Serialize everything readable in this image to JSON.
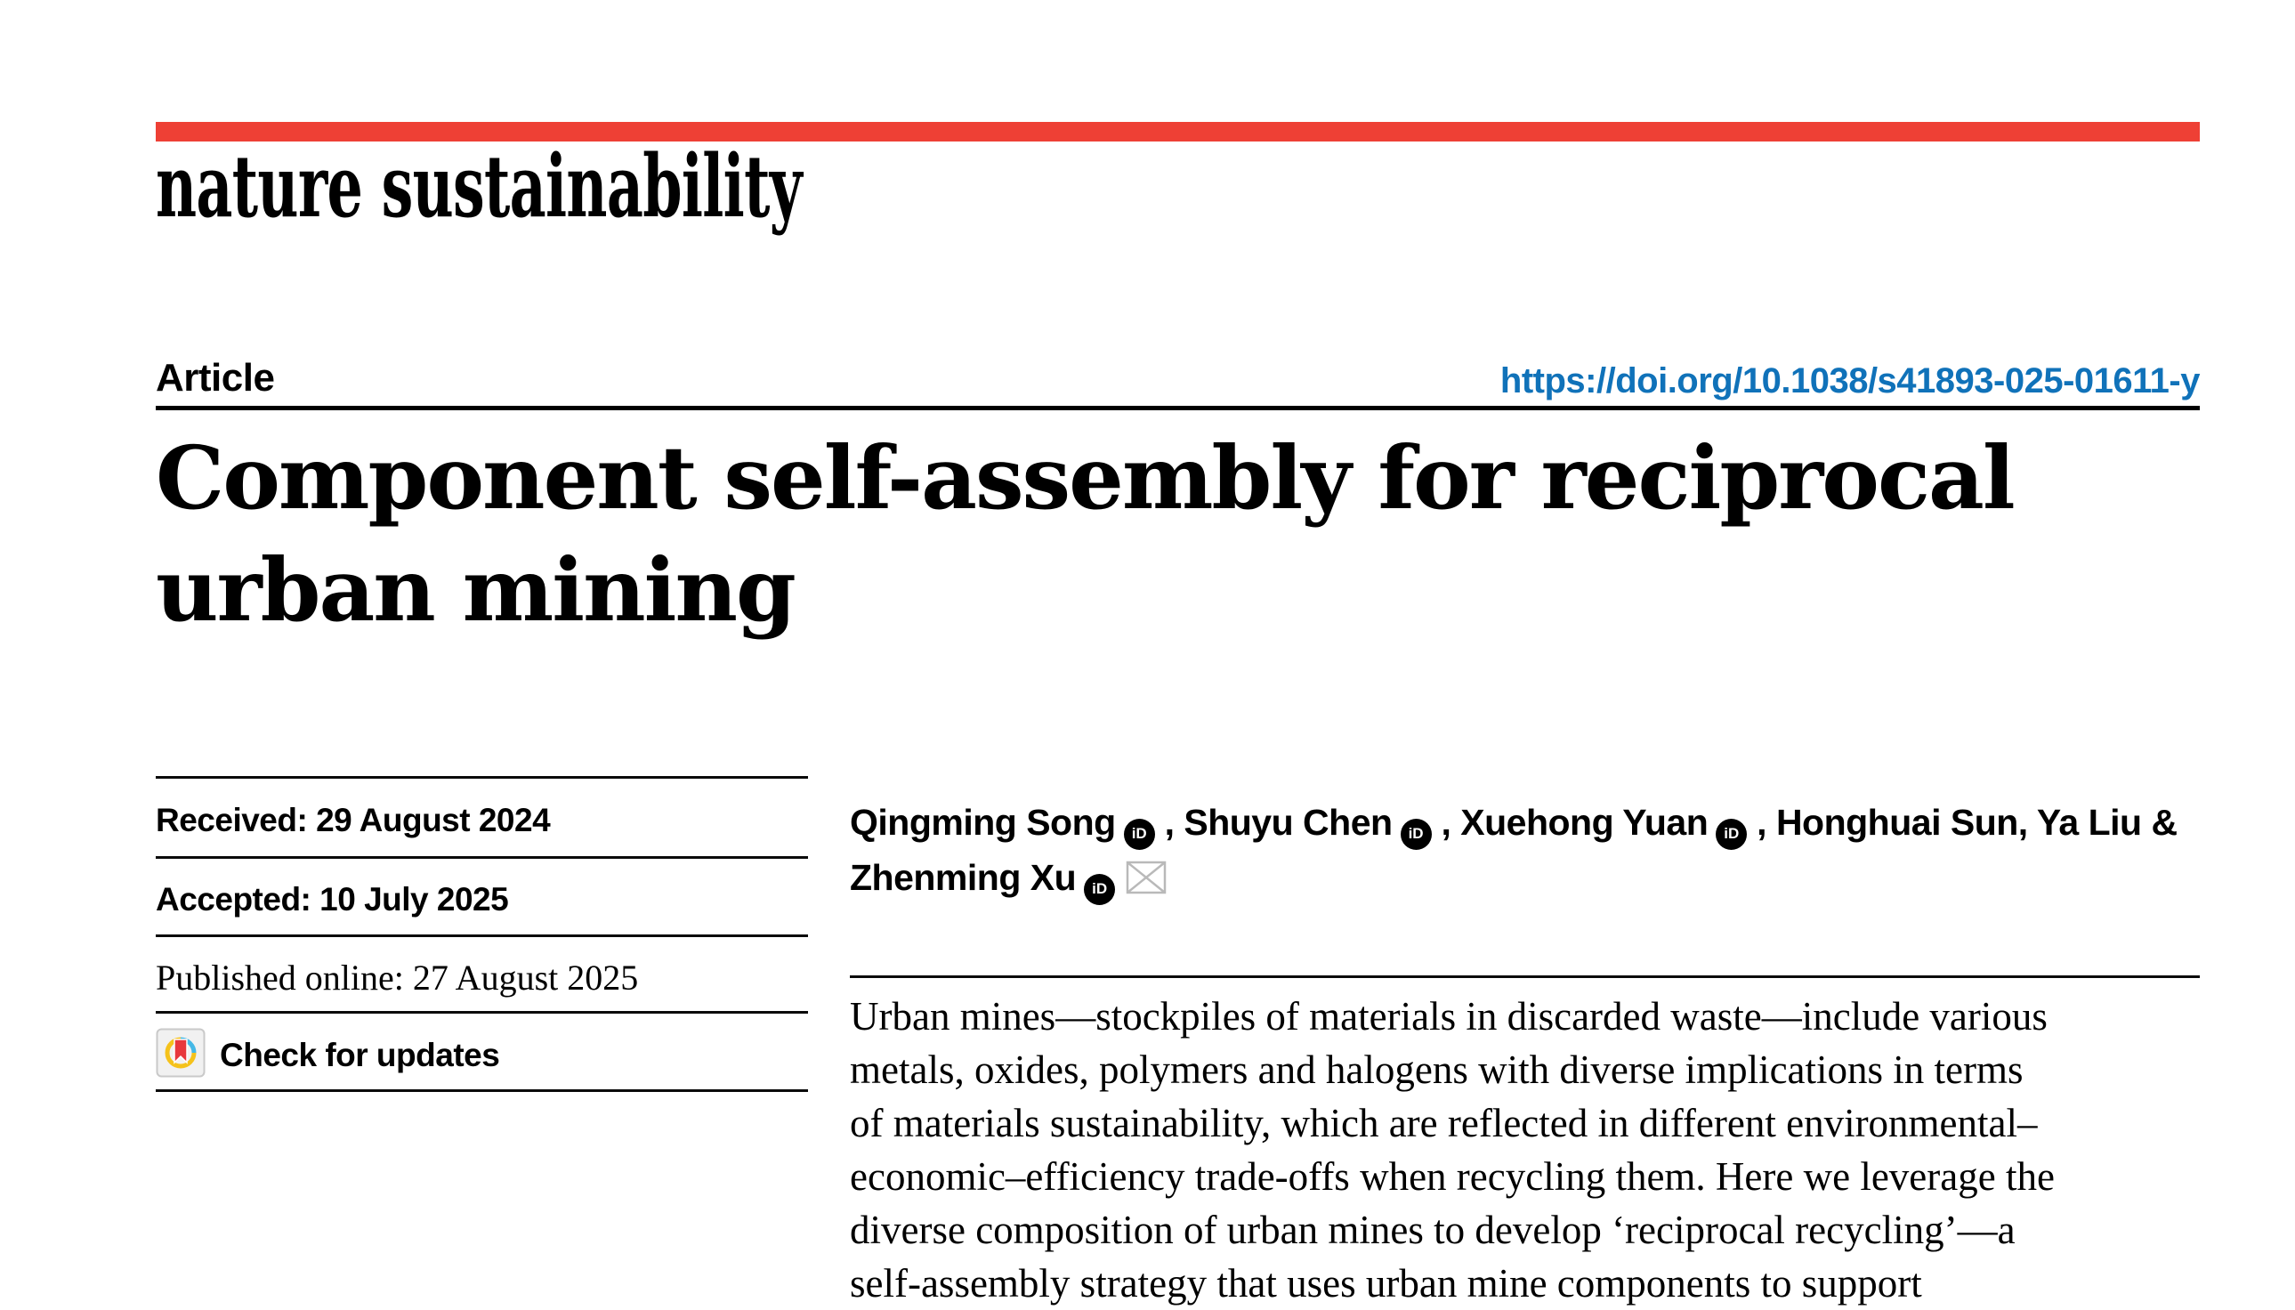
{
  "journal": {
    "wordmark": "nature sustainability"
  },
  "header": {
    "article_label": "Article",
    "doi_url": "https://doi.org/10.1038/s41893-025-01611-y"
  },
  "title": {
    "line1": "Component self-assembly for reciprocal",
    "line2": "urban mining"
  },
  "dates": {
    "received": "Received: 29 August 2024",
    "accepted": "Accepted: 10 July 2025",
    "published_online": "Published online: 27 August 2025"
  },
  "crossmark": {
    "label": "Check for updates"
  },
  "authors": {
    "orcid_icon_text": "iD",
    "list": [
      {
        "name": "Qingming Song",
        "orcid": true,
        "email": false,
        "sep": " , ",
        "break": false
      },
      {
        "name": "Shuyu Chen",
        "orcid": true,
        "email": false,
        "sep": " , ",
        "break": false
      },
      {
        "name": "Xuehong Yuan",
        "orcid": true,
        "email": false,
        "sep": " , ",
        "break": false
      },
      {
        "name": "Honghuai Sun",
        "orcid": false,
        "email": false,
        "sep": ", ",
        "break": false
      },
      {
        "name": "Ya Liu",
        "orcid": false,
        "email": false,
        "sep": " & ",
        "break": false
      },
      {
        "name": "Zhenming Xu",
        "orcid": true,
        "email": true,
        "sep": "",
        "break": true
      }
    ]
  },
  "abstract": {
    "lines": [
      "Urban mines—stockpiles of materials in discarded waste—include various",
      "metals, oxides, polymers and halogens with diverse implications in terms",
      "of materials sustainability, which are reflected in different environmental–",
      "economic–efficiency trade-offs when recycling them. Here we leverage the",
      "diverse composition of urban mines to develop ‘reciprocal recycling’—a",
      "self-assembly strategy that uses urban mine components to support"
    ]
  },
  "colors": {
    "accent_red": "#ee4035",
    "link_blue": "#1072b9",
    "rule_black": "#0a0a0a",
    "crossmark_yellow": "#f5c21b",
    "crossmark_cyan": "#45b8e6",
    "crossmark_red": "#e8373d",
    "envelope_gray": "#b9b9b9"
  }
}
